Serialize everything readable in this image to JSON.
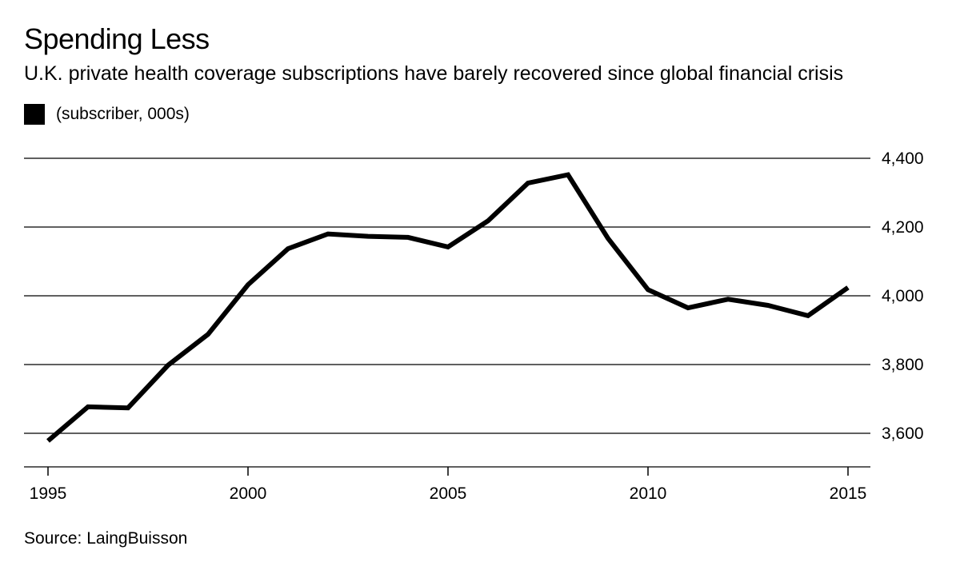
{
  "chart_data": {
    "type": "line",
    "title": "Spending Less",
    "subtitle": "U.K. private health coverage subscriptions have barely recovered since global financial crisis",
    "legend": [
      {
        "label": "(subscriber, 000s)",
        "color": "#000000"
      }
    ],
    "x": [
      1995,
      1996,
      1997,
      1998,
      1999,
      2000,
      2001,
      2002,
      2003,
      2004,
      2005,
      2006,
      2007,
      2008,
      2009,
      2010,
      2011,
      2012,
      2013,
      2014,
      2015
    ],
    "series": [
      {
        "name": "(subscriber, 000s)",
        "values": [
          3578,
          3677,
          3674,
          3798,
          3888,
          4032,
          4137,
          4180,
          4173,
          4170,
          4142,
          4218,
          4328,
          4352,
          4167,
          4018,
          3965,
          3990,
          3972,
          3942,
          4024
        ]
      }
    ],
    "xlim": [
      1995,
      2015
    ],
    "ylim": [
      3500,
      4400
    ],
    "yticks": [
      3600,
      3800,
      4000,
      4200,
      4400
    ],
    "ytick_labels": [
      "3,600",
      "3,800",
      "4,000",
      "4,200",
      "4,400"
    ],
    "xticks": [
      1995,
      2000,
      2005,
      2010,
      2015
    ],
    "xtick_labels": [
      "1995",
      "2000",
      "2005",
      "2010",
      "2015"
    ],
    "source": "Source: LaingBuisson",
    "line_color": "#000000",
    "grid": true
  }
}
